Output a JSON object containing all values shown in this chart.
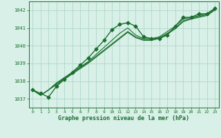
{
  "title": "Graphe pression niveau de la mer (hPa)",
  "bg_color": "#d8f0e8",
  "grid_color": "#b0d8c8",
  "line_color": "#1a6e2e",
  "x_ticks": [
    0,
    1,
    2,
    3,
    4,
    5,
    6,
    7,
    8,
    9,
    10,
    11,
    12,
    13,
    14,
    15,
    16,
    17,
    18,
    19,
    20,
    21,
    22,
    23
  ],
  "y_ticks": [
    1037,
    1038,
    1039,
    1040,
    1041,
    1042
  ],
  "ylim": [
    1036.5,
    1042.5
  ],
  "xlim": [
    -0.5,
    23.5
  ],
  "series": [
    {
      "x": [
        0,
        1,
        2,
        3,
        4,
        5,
        6,
        7,
        8,
        9,
        10,
        11,
        12,
        13,
        14,
        15,
        16,
        17,
        18,
        19,
        20,
        21,
        22,
        23
      ],
      "y": [
        1037.5,
        1037.3,
        1037.1,
        1037.7,
        1038.1,
        1038.5,
        1038.9,
        1039.3,
        1039.8,
        1040.3,
        1040.9,
        1041.2,
        1041.3,
        1041.1,
        1040.5,
        1040.4,
        1040.4,
        1040.6,
        1041.1,
        1041.6,
        1041.6,
        1041.8,
        1041.8,
        1042.1
      ],
      "marker": "D",
      "markersize": 2.5,
      "linewidth": 1.0,
      "zorder": 3
    },
    {
      "x": [
        0,
        1,
        2,
        3,
        4,
        5,
        6,
        7,
        8,
        9,
        10,
        11,
        12,
        13,
        14,
        15,
        16,
        17,
        18,
        19,
        20,
        21,
        22,
        23
      ],
      "y": [
        1037.5,
        1037.2,
        1037.5,
        1037.9,
        1038.2,
        1038.5,
        1038.8,
        1039.1,
        1039.5,
        1039.9,
        1040.3,
        1040.7,
        1041.0,
        1040.6,
        1040.4,
        1040.4,
        1040.5,
        1040.8,
        1041.1,
        1041.5,
        1041.6,
        1041.7,
        1041.8,
        1042.1
      ],
      "marker": null,
      "markersize": 0,
      "linewidth": 0.8,
      "zorder": 2
    },
    {
      "x": [
        0,
        1,
        2,
        3,
        4,
        5,
        6,
        7,
        8,
        9,
        10,
        11,
        12,
        13,
        14,
        15,
        16,
        17,
        18,
        19,
        20,
        21,
        22,
        23
      ],
      "y": [
        1037.5,
        1037.2,
        1037.5,
        1037.85,
        1038.15,
        1038.45,
        1038.75,
        1039.05,
        1039.4,
        1039.75,
        1040.1,
        1040.45,
        1040.8,
        1040.5,
        1040.35,
        1040.35,
        1040.45,
        1040.7,
        1041.0,
        1041.4,
        1041.55,
        1041.65,
        1041.75,
        1042.05
      ],
      "marker": null,
      "markersize": 0,
      "linewidth": 0.8,
      "zorder": 2
    },
    {
      "x": [
        0,
        1,
        2,
        3,
        4,
        5,
        6,
        7,
        8,
        9,
        10,
        11,
        12,
        13,
        14,
        15,
        16,
        17,
        18,
        19,
        20,
        21,
        22,
        23
      ],
      "y": [
        1037.5,
        1037.2,
        1037.5,
        1037.8,
        1038.1,
        1038.4,
        1038.7,
        1039.0,
        1039.35,
        1039.7,
        1040.05,
        1040.4,
        1040.75,
        1040.45,
        1040.3,
        1040.3,
        1040.4,
        1040.65,
        1040.95,
        1041.35,
        1041.5,
        1041.6,
        1041.7,
        1042.0
      ],
      "marker": null,
      "markersize": 0,
      "linewidth": 0.8,
      "zorder": 2
    }
  ]
}
